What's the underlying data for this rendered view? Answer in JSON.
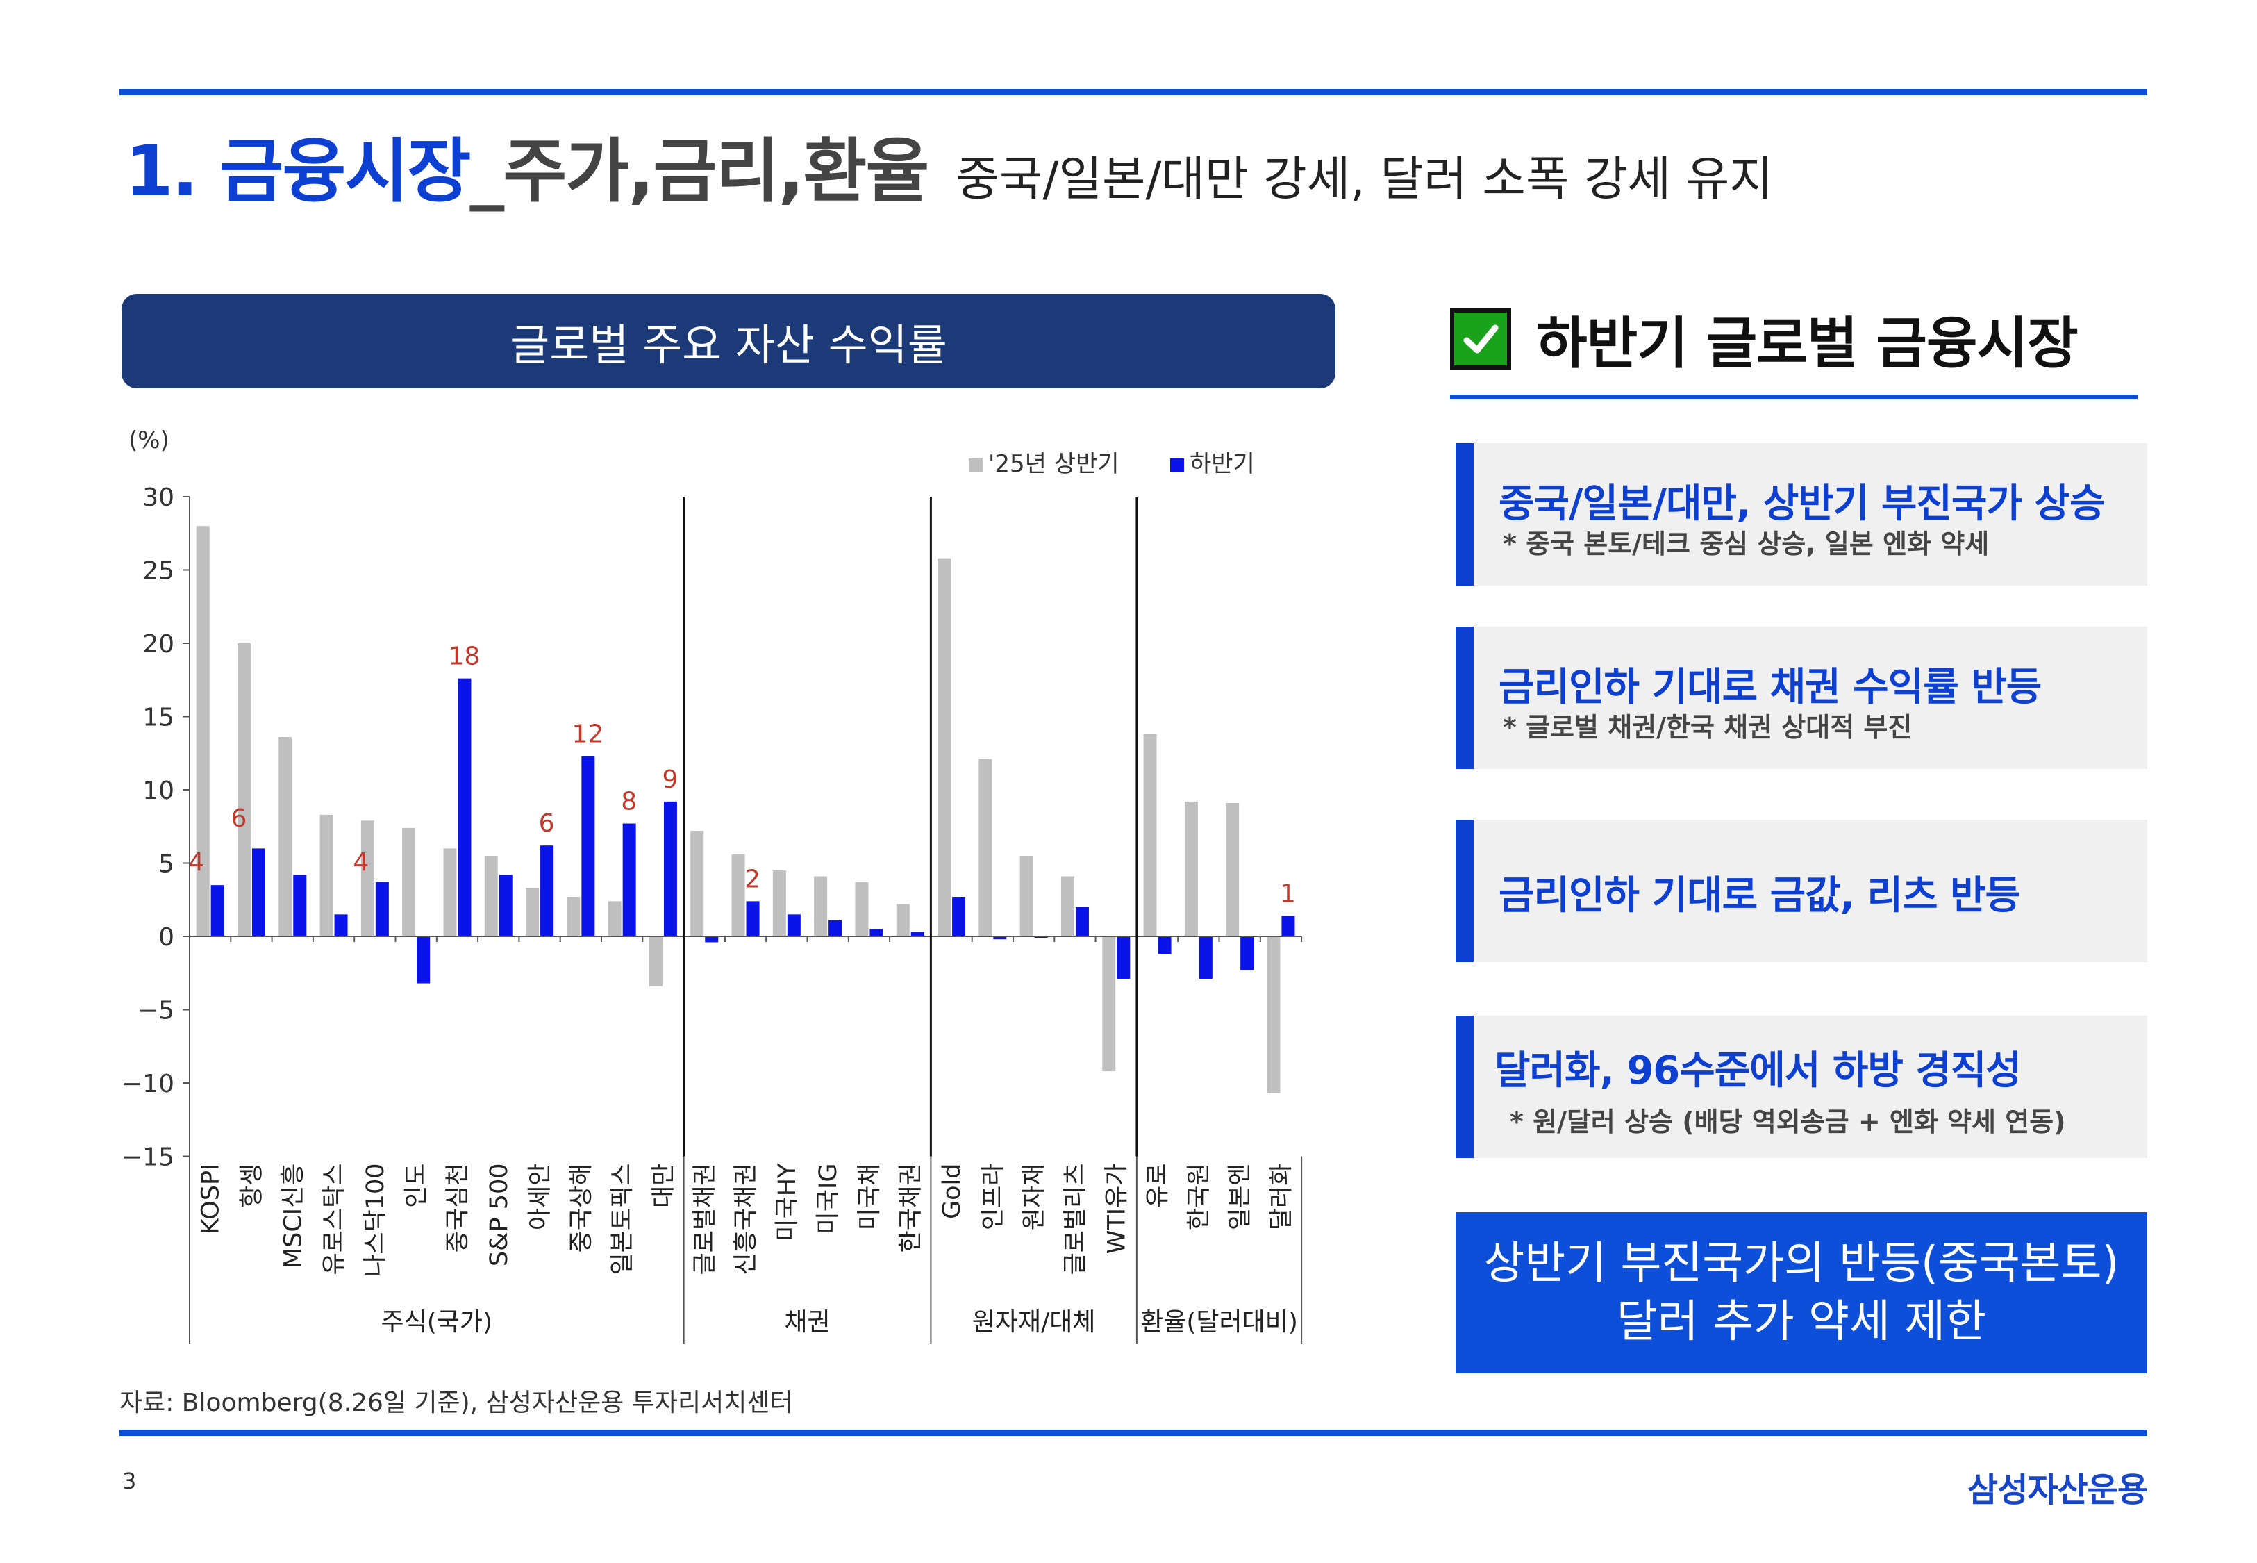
{
  "header": {
    "title_main": "1. 금융시장",
    "title_sub": "_주가,금리,환율",
    "title_desc": "중국/일본/대만 강세, 달러 소폭 강세 유지"
  },
  "chart_header": "글로벌 주요 자산 수익률",
  "chart_data": {
    "type": "bar",
    "ylabel": "(%)",
    "ylim": [
      -15,
      30
    ],
    "yticks": [
      30,
      25,
      20,
      15,
      10,
      5,
      0,
      -5,
      -10,
      -15
    ],
    "categories": [
      "KOSPI",
      "항셍",
      "MSCI신흥",
      "유로스탁스",
      "나스닥100",
      "인도",
      "중국심천",
      "S&P 500",
      "아세안",
      "중국상해",
      "일본토픽스",
      "대만",
      "글로벌채권",
      "신흥국채권",
      "미국HY",
      "미국IG",
      "미국채",
      "한국채권",
      "Gold",
      "인프라",
      "원자재",
      "글로벌리츠",
      "WTI유가",
      "유로",
      "한국원",
      "일본엔",
      "달러화"
    ],
    "series": [
      {
        "name": "'25년 상반기",
        "color": "#bfbfbf",
        "values": [
          28.0,
          20.0,
          13.6,
          8.3,
          7.9,
          7.4,
          6.0,
          5.5,
          3.3,
          2.7,
          2.4,
          -3.4,
          7.2,
          5.6,
          4.5,
          4.1,
          3.7,
          2.2,
          25.8,
          12.1,
          5.5,
          4.1,
          -9.2,
          13.8,
          9.2,
          9.1,
          -10.7
        ]
      },
      {
        "name": "하반기",
        "color": "#0a14e8",
        "values": [
          3.5,
          6.0,
          4.2,
          1.5,
          3.7,
          -3.2,
          17.6,
          4.2,
          6.2,
          12.3,
          7.7,
          9.2,
          -0.4,
          2.4,
          1.5,
          1.1,
          0.5,
          0.3,
          2.7,
          -0.2,
          -0.1,
          2.0,
          -2.9,
          -1.2,
          -2.9,
          -2.3,
          1.4
        ]
      }
    ],
    "data_labels": [
      {
        "index": 0,
        "text": "4"
      },
      {
        "index": 1,
        "text": "6"
      },
      {
        "index": 4,
        "text": "4"
      },
      {
        "index": 6,
        "text": "18"
      },
      {
        "index": 8,
        "text": "6"
      },
      {
        "index": 9,
        "text": "12"
      },
      {
        "index": 10,
        "text": "8"
      },
      {
        "index": 11,
        "text": "9"
      },
      {
        "index": 13,
        "text": "2"
      },
      {
        "index": 26,
        "text": "1"
      }
    ],
    "groups": [
      {
        "label": "주식(국가)",
        "start": 0,
        "end": 11
      },
      {
        "label": "채권",
        "start": 12,
        "end": 17
      },
      {
        "label": "원자재/대체",
        "start": 18,
        "end": 22
      },
      {
        "label": "환율(달러대비)",
        "start": 23,
        "end": 26
      }
    ],
    "legend_position": "top-right"
  },
  "source": "자료: Bloomberg(8.26일 기준), 삼성자산운용 투자리서치센터",
  "page_number": "3",
  "logo_text": "삼성자산운용",
  "sidebar": {
    "title": "하반기 글로벌 금융시장",
    "cards": [
      {
        "heading": "중국/일본/대만, 상반기 부진국가 상승",
        "note": "* 중국 본토/테크 중심 상승, 일본 엔화 약세"
      },
      {
        "heading": "금리인하 기대로 채권 수익률 반등",
        "note": "* 글로벌 채권/한국 채권 상대적 부진"
      },
      {
        "heading": "금리인하 기대로 금값, 리츠 반등",
        "note": ""
      },
      {
        "heading": "달러화, 96수준에서 하방 경직성",
        "note": "* 원/달러 상승 (배당 역외송금 + 엔화 약세 연동)"
      }
    ],
    "conclusion_line1": "상반기 부진국가의 반등(중국본토)",
    "conclusion_line2": "달러 추가 약세 제한"
  },
  "colors": {
    "accent": "#0d4fd8",
    "header_navy": "#1c3a78",
    "label_red": "#c0392b",
    "check_green": "#1aa31a"
  }
}
